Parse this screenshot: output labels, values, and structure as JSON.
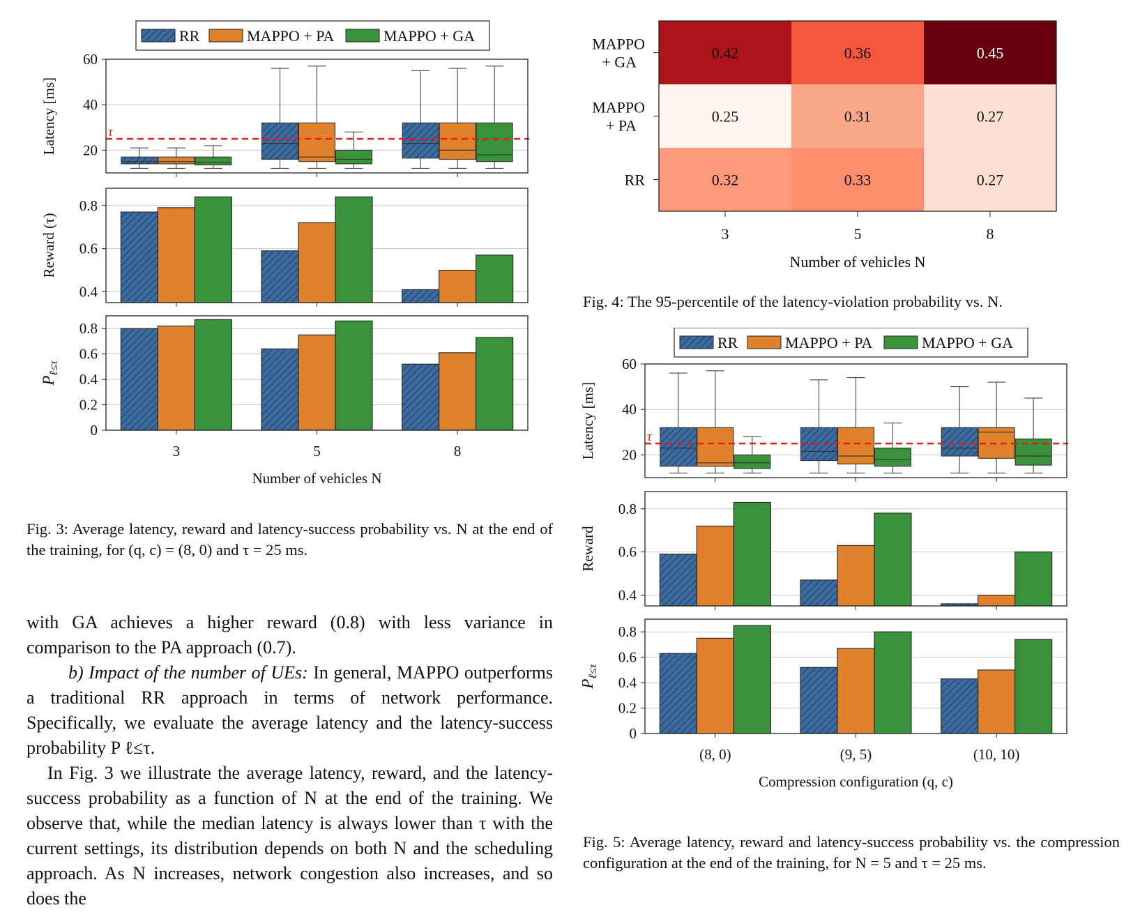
{
  "series_colors": {
    "RR": "#3c6b9f",
    "MAPPO + PA": "#e1812c",
    "MAPPO + GA": "#3a923a"
  },
  "threshold_color": "#e41a1c",
  "chart_data": [
    {
      "id": "fig3",
      "type": "bar",
      "legend": [
        "RR",
        "MAPPO + PA",
        "MAPPO + GA"
      ],
      "legend_placement": "top",
      "categories": [
        "3",
        "5",
        "8"
      ],
      "xlabel": "Number of vehicles N",
      "grid": true,
      "panels": [
        {
          "kind": "box",
          "ylabel": "Latency [ms]",
          "ylim": [
            10,
            60
          ],
          "yticks": [
            "20",
            "40",
            "60"
          ],
          "threshold": {
            "value": 25,
            "label": "τ"
          },
          "boxes": [
            [
              [
                12,
                14,
                15,
                17,
                21
              ],
              [
                12,
                14,
                15,
                17,
                21
              ],
              [
                12,
                13.5,
                14.5,
                17,
                22
              ]
            ],
            [
              [
                12,
                16,
                23,
                32,
                56
              ],
              [
                12,
                15,
                17,
                32,
                57
              ],
              [
                12,
                14,
                16,
                20,
                28
              ]
            ],
            [
              [
                12,
                16.5,
                23,
                32,
                55
              ],
              [
                12,
                16,
                20,
                32,
                56
              ],
              [
                12,
                15,
                18,
                32,
                57
              ]
            ]
          ]
        },
        {
          "kind": "bar",
          "ylabel": "Reward (τ)",
          "ylim": [
            0.35,
            0.88
          ],
          "yticks": [
            "0.4",
            "0.6",
            "0.8"
          ],
          "series": [
            {
              "name": "RR",
              "values": [
                0.77,
                0.59,
                0.41
              ]
            },
            {
              "name": "MAPPO + PA",
              "values": [
                0.79,
                0.72,
                0.5
              ]
            },
            {
              "name": "MAPPO + GA",
              "values": [
                0.84,
                0.84,
                0.57
              ]
            }
          ]
        },
        {
          "kind": "bar",
          "ylabel": "P ℓ≤τ",
          "ylim": [
            0,
            0.9
          ],
          "yticks": [
            "0",
            "0.2",
            "0.4",
            "0.6",
            "0.8"
          ],
          "series": [
            {
              "name": "RR",
              "values": [
                0.8,
                0.64,
                0.52
              ]
            },
            {
              "name": "MAPPO + PA",
              "values": [
                0.82,
                0.75,
                0.61
              ]
            },
            {
              "name": "MAPPO + GA",
              "values": [
                0.87,
                0.86,
                0.73
              ]
            }
          ]
        }
      ]
    },
    {
      "id": "fig4",
      "type": "heatmap",
      "rows": [
        "MAPPO\n+ GA",
        "MAPPO\n+ PA",
        "RR"
      ],
      "columns": [
        "3",
        "5",
        "8"
      ],
      "values": [
        [
          "0.42",
          "0.36",
          "0.45"
        ],
        [
          "0.25",
          "0.31",
          "0.27"
        ],
        [
          "0.32",
          "0.33",
          "0.27"
        ]
      ],
      "cell_colors": [
        [
          "#ad1419",
          "#f5563e",
          "#67000d"
        ],
        [
          "#fff4ef",
          "#fca98a",
          "#fee0d2"
        ],
        [
          "#fc9a7b",
          "#fc8e6e",
          "#fee0d2"
        ]
      ],
      "text_colors": [
        [
          "#111111",
          "#111111",
          "#ffffff"
        ],
        [
          "#111111",
          "#111111",
          "#111111"
        ],
        [
          "#111111",
          "#111111",
          "#111111"
        ]
      ],
      "xlabel": "Number of vehicles N"
    },
    {
      "id": "fig5",
      "type": "bar",
      "legend": [
        "RR",
        "MAPPO + PA",
        "MAPPO + GA"
      ],
      "legend_placement": "top",
      "categories": [
        "(8, 0)",
        "(9, 5)",
        "(10, 10)"
      ],
      "xlabel": "Compression configuration (q, c)",
      "grid": true,
      "panels": [
        {
          "kind": "box",
          "ylabel": "Latency [ms]",
          "ylim": [
            10,
            60
          ],
          "yticks": [
            "20",
            "40",
            "60"
          ],
          "threshold": {
            "value": 25,
            "label": "τ"
          },
          "boxes": [
            [
              [
                12,
                15,
                23,
                32,
                56
              ],
              [
                12,
                15,
                16.5,
                32,
                57
              ],
              [
                12,
                14,
                16.5,
                20,
                28
              ]
            ],
            [
              [
                12,
                17.5,
                21.5,
                32,
                53
              ],
              [
                12,
                16,
                19.5,
                32,
                54
              ],
              [
                12,
                15,
                18,
                23,
                34
              ]
            ],
            [
              [
                12,
                19.5,
                23,
                32,
                50
              ],
              [
                12,
                18.5,
                30,
                32,
                52
              ],
              [
                12,
                15.5,
                19.5,
                27,
                45
              ]
            ]
          ]
        },
        {
          "kind": "bar",
          "ylabel": "Reward",
          "ylim": [
            0.35,
            0.88
          ],
          "yticks": [
            "0.4",
            "0.6",
            "0.8"
          ],
          "series": [
            {
              "name": "RR",
              "values": [
                0.59,
                0.47,
                0.36
              ]
            },
            {
              "name": "MAPPO + PA",
              "values": [
                0.72,
                0.63,
                0.4
              ]
            },
            {
              "name": "MAPPO + GA",
              "values": [
                0.83,
                0.78,
                0.6
              ]
            }
          ]
        },
        {
          "kind": "bar",
          "ylabel": "P ℓ≤τ",
          "ylim": [
            0,
            0.9
          ],
          "yticks": [
            "0",
            "0.2",
            "0.4",
            "0.6",
            "0.8"
          ],
          "series": [
            {
              "name": "RR",
              "values": [
                0.63,
                0.52,
                0.43
              ]
            },
            {
              "name": "MAPPO + PA",
              "values": [
                0.75,
                0.67,
                0.5
              ]
            },
            {
              "name": "MAPPO + GA",
              "values": [
                0.85,
                0.8,
                0.74
              ]
            }
          ]
        }
      ]
    }
  ],
  "fig3_caption": "Fig. 3: Average latency, reward and latency-success probability vs. N at the end of the training, for (q, c) = (8, 0) and τ = 25 ms.",
  "fig4_caption": "Fig. 4: The 95-percentile of the latency-violation probability vs. N.",
  "fig5_caption": "Fig. 5: Average latency, reward and latency-success probability vs. the compression configuration at the end of the training, for N = 5 and τ = 25 ms.",
  "body": {
    "p1": "with GA achieves a higher reward (0.8) with less variance in comparison to the PA approach (0.7).",
    "p2_heading": "b) Impact of the number of UEs:",
    "p2": " In general, MAPPO outperforms a traditional RR approach in terms of network performance. Specifically, we evaluate the average latency and the latency-success probability P ℓ≤τ.",
    "p3": "In Fig. 3 we illustrate the average latency, reward, and the latency-success probability as a function of N at the end of the training. We observe that, while the median latency is always lower than τ with the current settings, its distribution depends on both N and the scheduling approach. As N increases, network congestion also increases, and so does the"
  }
}
